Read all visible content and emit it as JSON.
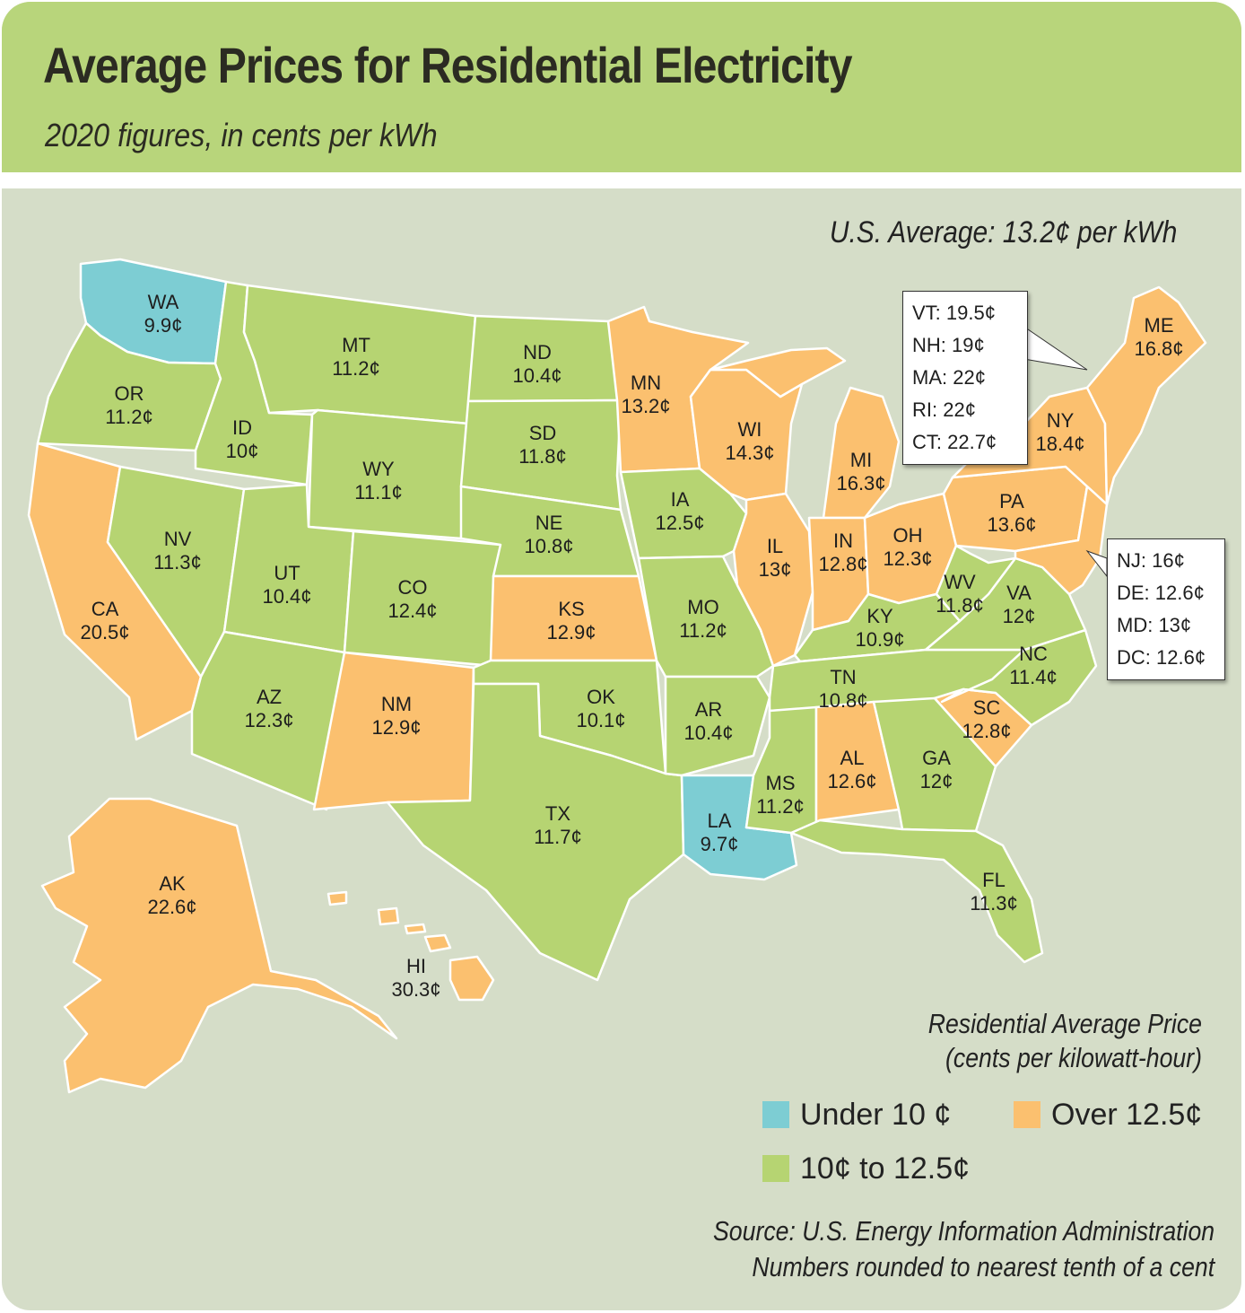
{
  "title": "Average Prices for Residential Electricity",
  "subtitle": "2020 figures, in cents per kWh",
  "us_average": "U.S. Average: 13.2¢ per kWh",
  "colors": {
    "under_10": "#7dcdd3",
    "mid": "#b6d472",
    "over_12_5": "#fbc06f",
    "header": "#b8d57b",
    "background": "#d5ddc8"
  },
  "states": {
    "WA": {
      "abbr": "WA",
      "price": "9.9¢"
    },
    "OR": {
      "abbr": "OR",
      "price": "11.2¢"
    },
    "CA": {
      "abbr": "CA",
      "price": "20.5¢"
    },
    "ID": {
      "abbr": "ID",
      "price": "10¢"
    },
    "NV": {
      "abbr": "NV",
      "price": "11.3¢"
    },
    "MT": {
      "abbr": "MT",
      "price": "11.2¢"
    },
    "WY": {
      "abbr": "WY",
      "price": "11.1¢"
    },
    "UT": {
      "abbr": "UT",
      "price": "10.4¢"
    },
    "AZ": {
      "abbr": "AZ",
      "price": "12.3¢"
    },
    "CO": {
      "abbr": "CO",
      "price": "12.4¢"
    },
    "NM": {
      "abbr": "NM",
      "price": "12.9¢"
    },
    "ND": {
      "abbr": "ND",
      "price": "10.4¢"
    },
    "SD": {
      "abbr": "SD",
      "price": "11.8¢"
    },
    "NE": {
      "abbr": "NE",
      "price": "10.8¢"
    },
    "KS": {
      "abbr": "KS",
      "price": "12.9¢"
    },
    "OK": {
      "abbr": "OK",
      "price": "10.1¢"
    },
    "TX": {
      "abbr": "TX",
      "price": "11.7¢"
    },
    "MN": {
      "abbr": "MN",
      "price": "13.2¢"
    },
    "IA": {
      "abbr": "IA",
      "price": "12.5¢"
    },
    "MO": {
      "abbr": "MO",
      "price": "11.2¢"
    },
    "AR": {
      "abbr": "AR",
      "price": "10.4¢"
    },
    "LA": {
      "abbr": "LA",
      "price": "9.7¢"
    },
    "WI": {
      "abbr": "WI",
      "price": "14.3¢"
    },
    "IL": {
      "abbr": "IL",
      "price": "13¢"
    },
    "MI": {
      "abbr": "MI",
      "price": "16.3¢"
    },
    "IN": {
      "abbr": "IN",
      "price": "12.8¢"
    },
    "OH": {
      "abbr": "OH",
      "price": "12.3¢"
    },
    "KY": {
      "abbr": "KY",
      "price": "10.9¢"
    },
    "TN": {
      "abbr": "TN",
      "price": "10.8¢"
    },
    "MS": {
      "abbr": "MS",
      "price": "11.2¢"
    },
    "AL": {
      "abbr": "AL",
      "price": "12.6¢"
    },
    "GA": {
      "abbr": "GA",
      "price": "12¢"
    },
    "FL": {
      "abbr": "FL",
      "price": "11.3¢"
    },
    "SC": {
      "abbr": "SC",
      "price": "12.8¢"
    },
    "NC": {
      "abbr": "NC",
      "price": "11.4¢"
    },
    "VA": {
      "abbr": "VA",
      "price": "12¢"
    },
    "WV": {
      "abbr": "WV",
      "price": "11.8¢"
    },
    "PA": {
      "abbr": "PA",
      "price": "13.6¢"
    },
    "NY": {
      "abbr": "NY",
      "price": "18.4¢"
    },
    "ME": {
      "abbr": "ME",
      "price": "16.8¢"
    },
    "AK": {
      "abbr": "AK",
      "price": "22.6¢"
    },
    "HI": {
      "abbr": "HI",
      "price": "30.3¢"
    }
  },
  "callout_ne": [
    "VT: 19.5¢",
    "NH: 19¢",
    "MA: 22¢",
    "RI: 22¢",
    "CT: 22.7¢"
  ],
  "callout_mid_atlantic": [
    "NJ: 16¢",
    "DE: 12.6¢",
    "MD: 13¢",
    "DC: 12.6¢"
  ],
  "legend": {
    "title_line1": "Residential Average Price",
    "title_line2": "(cents per kilowatt-hour)",
    "under_10": "Under 10 ¢",
    "over_12_5": "Over 12.5¢",
    "mid": "10¢ to 12.5¢"
  },
  "source_line1": "Source: U.S. Energy Information Administration",
  "source_line2": "Numbers rounded to nearest tenth of a cent"
}
